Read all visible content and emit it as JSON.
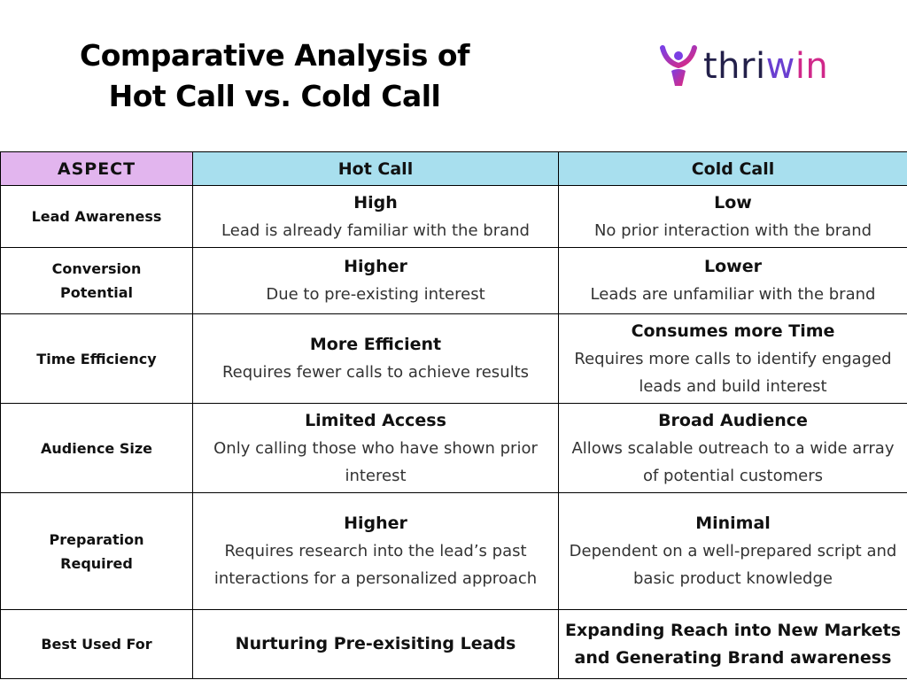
{
  "title": {
    "line1": "Comparative Analysis of",
    "line2": "Hot Call vs. Cold Call"
  },
  "logo": {
    "icon": "person-raising-arms-icon",
    "text_part1": "thri",
    "text_part2": "w",
    "text_part3": "in",
    "colors": {
      "dark": "#23204a",
      "purple": "#6a3fd0",
      "pink": "#d0288a"
    }
  },
  "table": {
    "headers": {
      "aspect": "ASPECT",
      "hot": "Hot Call",
      "cold": "Cold Call"
    },
    "header_colors": {
      "aspect": "#e2b5ee",
      "calls": "#a8dfee"
    },
    "rows": [
      {
        "aspect": "Lead Awareness",
        "hot": {
          "head": "High",
          "desc": "Lead is already familiar with the brand"
        },
        "cold": {
          "head": "Low",
          "desc": "No prior interaction with the brand"
        }
      },
      {
        "aspect": "Conversion Potential",
        "hot": {
          "head": "Higher",
          "desc": "Due to pre-existing interest"
        },
        "cold": {
          "head": "Lower",
          "desc": "Leads are unfamiliar with the brand"
        }
      },
      {
        "aspect": "Time Efficiency",
        "hot": {
          "head": "More Efficient",
          "desc": "Requires fewer calls to achieve results"
        },
        "cold": {
          "head": "Consumes more Time",
          "desc": "Requires more calls to identify engaged leads and build interest"
        }
      },
      {
        "aspect": "Audience Size",
        "hot": {
          "head": "Limited Access",
          "desc": "Only calling those who have shown prior interest"
        },
        "cold": {
          "head": "Broad Audience",
          "desc": "Allows scalable outreach to a wide array of potential customers"
        }
      },
      {
        "aspect": "Preparation Required",
        "hot": {
          "head": "Higher",
          "desc": "Requires research into the lead’s past interactions for a personalized approach"
        },
        "cold": {
          "head": "Minimal",
          "desc": "Dependent on a well-prepared script and basic product knowledge"
        }
      },
      {
        "aspect": "Best Used For",
        "hot": {
          "head": "Nurturing Pre-exisiting Leads"
        },
        "cold": {
          "head": "Expanding Reach into New Markets and Generating Brand awareness"
        }
      }
    ]
  }
}
